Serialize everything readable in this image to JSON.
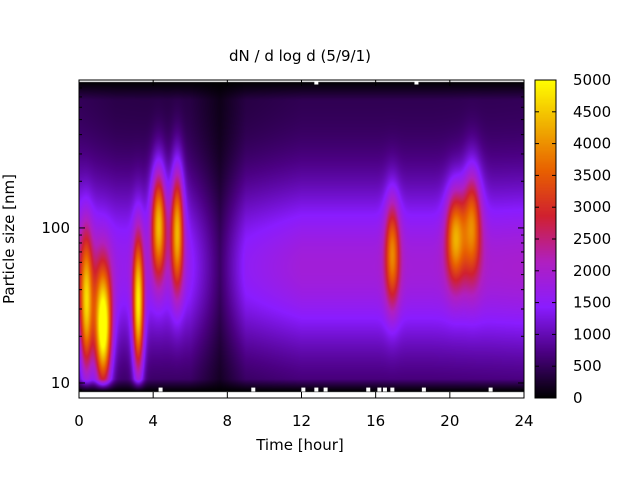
{
  "chart_data": {
    "type": "heatmap",
    "title": "dN / d log d (5/9/1)",
    "xlabel": "Time [hour]",
    "ylabel": "Particle size [nm]",
    "xlim": [
      0,
      24
    ],
    "x_ticks": [
      0,
      4,
      8,
      12,
      16,
      20,
      24
    ],
    "x_tick_labels": [
      "0",
      "4",
      "8",
      "12",
      "16",
      "20",
      "24"
    ],
    "y_scale": "log",
    "ylim": [
      8,
      900
    ],
    "y_data_range": [
      8.8,
      880
    ],
    "y_ticks": [
      10,
      100
    ],
    "y_tick_labels": [
      "10",
      "100"
    ],
    "colorbar": {
      "range": [
        0,
        5000
      ],
      "ticks": [
        0,
        500,
        1000,
        1500,
        2000,
        2500,
        3000,
        3500,
        4000,
        4500,
        5000
      ],
      "tick_labels": [
        "0",
        "500",
        "1000",
        "1500",
        "2000",
        "2500",
        "3000",
        "3500",
        "4000",
        "4500",
        "5000"
      ],
      "colormap": [
        "#000000",
        "#4b0082",
        "#8a1cff",
        "#b01fc0",
        "#d02030",
        "#e86000",
        "#f0b000",
        "#ffff00"
      ]
    },
    "grid": false,
    "events": [
      {
        "t": 0.4,
        "size_nm": 30,
        "peak": 3000,
        "t_width": 0.35,
        "log_width": 0.45
      },
      {
        "t": 1.3,
        "size_nm": 22,
        "peak": 4400,
        "t_width": 0.45,
        "log_width": 0.38
      },
      {
        "t": 3.2,
        "size_nm": 30,
        "peak": 3500,
        "t_width": 0.3,
        "log_width": 0.45
      },
      {
        "t": 4.3,
        "size_nm": 110,
        "peak": 3100,
        "t_width": 0.4,
        "log_width": 0.35
      },
      {
        "t": 5.3,
        "size_nm": 100,
        "peak": 3000,
        "t_width": 0.35,
        "log_width": 0.4
      },
      {
        "t": 16.9,
        "size_nm": 70,
        "peak": 2100,
        "t_width": 0.4,
        "log_width": 0.35
      },
      {
        "t": 20.3,
        "size_nm": 90,
        "peak": 2500,
        "t_width": 0.5,
        "log_width": 0.3
      },
      {
        "t": 21.2,
        "size_nm": 110,
        "peak": 2300,
        "t_width": 0.5,
        "log_width": 0.35
      }
    ],
    "background_level_by_hour": [
      {
        "t": 0,
        "level": 1800
      },
      {
        "t": 2,
        "level": 1500
      },
      {
        "t": 6,
        "level": 1400
      },
      {
        "t": 7.6,
        "level": 500
      },
      {
        "t": 9,
        "level": 1400
      },
      {
        "t": 12,
        "level": 1700
      },
      {
        "t": 16,
        "level": 1700
      },
      {
        "t": 19,
        "level": 1700
      },
      {
        "t": 24,
        "level": 1800
      }
    ],
    "white_gaps": [
      {
        "t": 12.8,
        "size_nm": 880
      },
      {
        "t": 18.2,
        "size_nm": 880
      },
      {
        "t": 4.4,
        "size_nm": 8.8
      },
      {
        "t": 9.4,
        "size_nm": 8.8
      },
      {
        "t": 12.1,
        "size_nm": 8.8
      },
      {
        "t": 12.8,
        "size_nm": 8.8
      },
      {
        "t": 13.3,
        "size_nm": 8.8
      },
      {
        "t": 15.6,
        "size_nm": 8.8
      },
      {
        "t": 16.2,
        "size_nm": 8.8
      },
      {
        "t": 16.5,
        "size_nm": 8.8
      },
      {
        "t": 16.9,
        "size_nm": 8.8
      },
      {
        "t": 18.6,
        "size_nm": 8.8
      },
      {
        "t": 22.2,
        "size_nm": 8.8
      }
    ]
  }
}
